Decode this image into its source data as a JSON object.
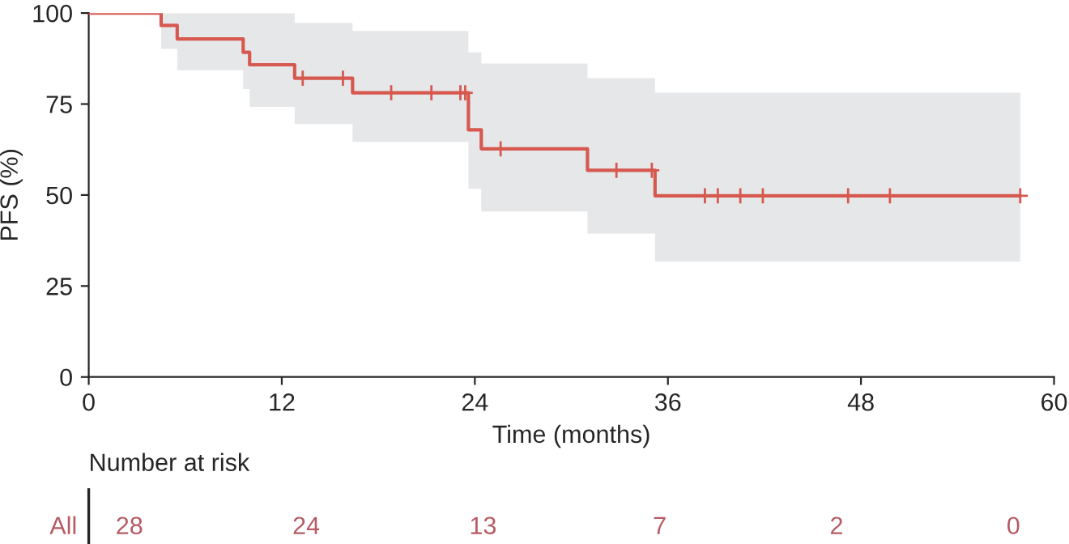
{
  "chart_data": [
    {
      "type": "step",
      "xlabel": "Time (months)",
      "ylabel": "PFS (%)",
      "xlim": [
        0,
        60
      ],
      "ylim": [
        0,
        100
      ],
      "xticks": [
        0,
        12,
        24,
        36,
        48,
        60
      ],
      "yticks": [
        0,
        25,
        50,
        75,
        100
      ],
      "grid": false,
      "series": [
        {
          "type": "step",
          "color": "#d6584f",
          "marker": "none",
          "x": [
            0,
            4.5,
            5.5,
            9.6,
            10.0,
            12.8,
            16.4,
            23.6,
            24.4,
            31.0,
            35.2,
            57.9
          ],
          "values": [
            100,
            96.6,
            92.9,
            89.2,
            85.8,
            82.1,
            78.1,
            67.9,
            62.7,
            56.8,
            49.8,
            49.8
          ],
          "lower": [
            100,
            90.2,
            84.3,
            79.1,
            74.2,
            69.5,
            64.6,
            51.7,
            45.5,
            39.4,
            31.7,
            31.7
          ],
          "upper": [
            100,
            100,
            100,
            100,
            100,
            97.3,
            95.1,
            89.2,
            86.1,
            82.1,
            78.1,
            78.1
          ]
        },
        {
          "type": "scatter",
          "color": "#d6584f",
          "marker": "cross",
          "x": [
            13.3,
            15.8,
            18.8,
            21.3,
            23.1,
            23.4,
            25.6,
            32.8,
            35.0,
            38.3,
            39.1,
            40.5,
            41.9,
            47.2,
            49.8,
            57.9
          ],
          "values": [
            82.1,
            82.1,
            78.1,
            78.1,
            78.1,
            78.1,
            62.7,
            56.8,
            56.8,
            49.8,
            49.8,
            49.8,
            49.8,
            49.8,
            49.8,
            49.8
          ]
        }
      ]
    },
    {
      "type": "other",
      "title": "Number at risk",
      "y_categories": [
        "All"
      ],
      "values": [
        28,
        24,
        13,
        7,
        2,
        0
      ],
      "color": "#b65a63",
      "data_labels": true
    }
  ]
}
